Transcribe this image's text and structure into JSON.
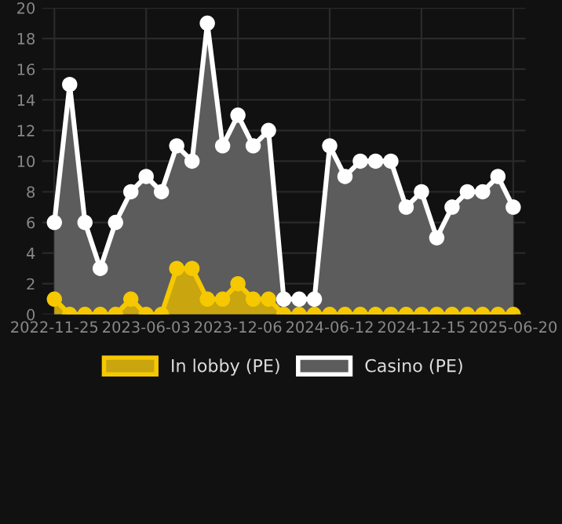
{
  "chart_data": {
    "type": "area",
    "categories": [
      "2022-11-25",
      null,
      null,
      null,
      null,
      null,
      "2023-06-03",
      null,
      null,
      null,
      null,
      null,
      "2023-12-06",
      null,
      null,
      null,
      null,
      null,
      "2024-06-12",
      null,
      null,
      null,
      null,
      null,
      "2024-12-15",
      null,
      null,
      null,
      null,
      null,
      "2025-06-20"
    ],
    "series": [
      {
        "name": "In lobby (PE)",
        "color": "#f5c800",
        "values": [
          1,
          0,
          0,
          0,
          0,
          1,
          0,
          0,
          3,
          3,
          1,
          1,
          2,
          1,
          1,
          0,
          0,
          0,
          0,
          0,
          0,
          0,
          0,
          0,
          0,
          0,
          0,
          0,
          0,
          0,
          0
        ]
      },
      {
        "name": "Casino (PE)",
        "color": "#ffffff",
        "values": [
          6,
          15,
          6,
          3,
          6,
          8,
          9,
          8,
          11,
          10,
          19,
          11,
          13,
          11,
          12,
          1,
          1,
          1,
          11,
          9,
          10,
          10,
          10,
          7,
          8,
          5,
          7,
          8,
          8,
          9,
          7
        ]
      }
    ],
    "ylim": [
      0,
      20
    ],
    "yticks": [
      0,
      2,
      4,
      6,
      8,
      10,
      12,
      14,
      16,
      18,
      20
    ],
    "grid": true,
    "legend": "bottom",
    "marker": "circle",
    "line_style": "solid"
  }
}
